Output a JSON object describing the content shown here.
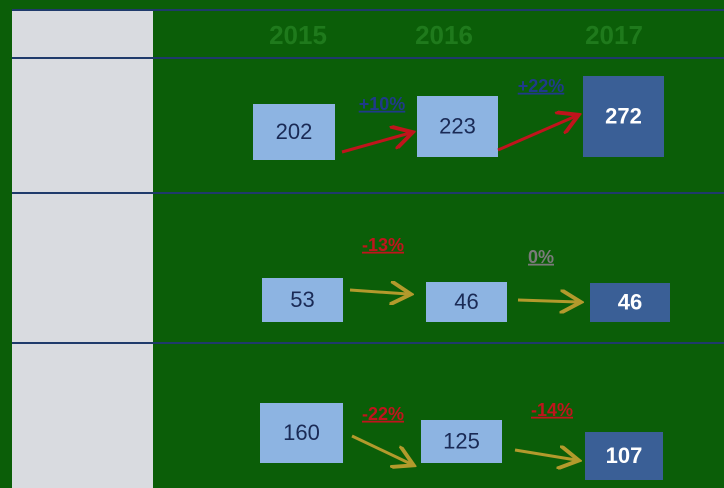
{
  "header": {
    "years": [
      "2015",
      "2016",
      "2017"
    ]
  },
  "rows": [
    {
      "values": [
        "202",
        "223",
        "272"
      ],
      "changes": [
        "+10%",
        "+22%"
      ]
    },
    {
      "values": [
        "53",
        "46",
        "46"
      ],
      "changes": [
        "-13%",
        "0%"
      ]
    },
    {
      "values": [
        "160",
        "125",
        "107"
      ],
      "changes": [
        "-22%",
        "-14%"
      ]
    }
  ]
}
